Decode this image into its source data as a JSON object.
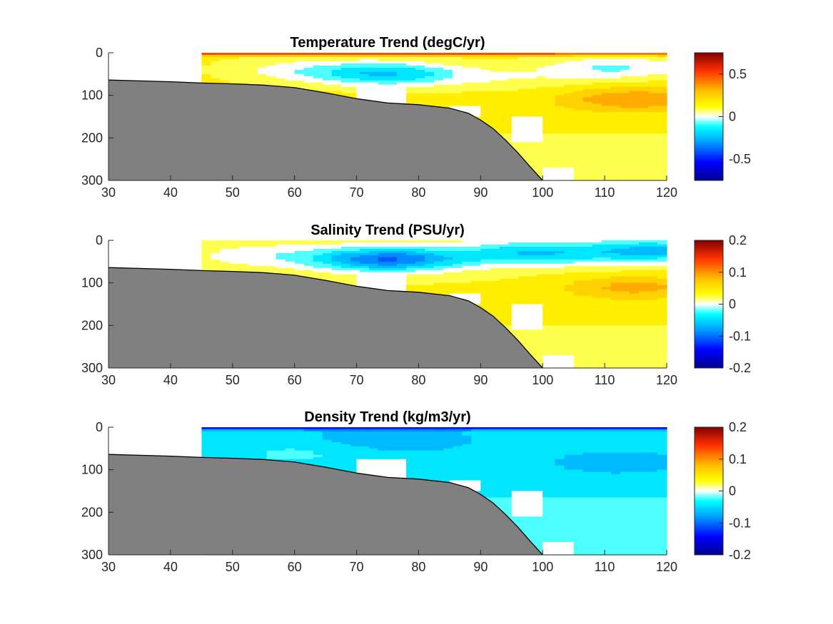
{
  "chart_data": [
    {
      "type": "heatmap",
      "title": "Temperature Trend (degC/yr)",
      "xlabel": "",
      "ylabel": "",
      "xlim": [
        30,
        120
      ],
      "xticks": [
        30,
        40,
        50,
        60,
        70,
        80,
        90,
        100,
        110,
        120
      ],
      "ylim": [
        300,
        0
      ],
      "yticks": [
        0,
        100,
        200,
        300
      ],
      "y_reversed": true,
      "clim": [
        -0.75,
        0.75
      ],
      "colorbar_ticks": [
        0.5,
        0,
        -0.5
      ],
      "data_x_start": 45,
      "field": {
        "surface": 0.6,
        "near_surface": 0.15,
        "mid_depth": 0.15,
        "deep": 0.06,
        "anomalies": [
          {
            "x": 75,
            "depth": 50,
            "value": -0.35
          },
          {
            "x": 112,
            "depth": 35,
            "value": -0.2
          },
          {
            "x": 60,
            "depth": 40,
            "value": -0.12
          },
          {
            "x": 95,
            "depth": 60,
            "value": -0.08
          },
          {
            "x": 115,
            "depth": 110,
            "value": 0.22
          }
        ]
      }
    },
    {
      "type": "heatmap",
      "title": "Salinity Trend (PSU/yr)",
      "xlabel": "",
      "ylabel": "",
      "xlim": [
        30,
        120
      ],
      "xticks": [
        30,
        40,
        50,
        60,
        70,
        80,
        90,
        100,
        110,
        120
      ],
      "ylim": [
        300,
        0
      ],
      "yticks": [
        0,
        100,
        200,
        300
      ],
      "y_reversed": true,
      "clim": [
        -0.2,
        0.2
      ],
      "colorbar_ticks": [
        0.2,
        0.1,
        0,
        -0.1,
        -0.2
      ],
      "data_x_start": 45,
      "field": {
        "surface": 0.03,
        "near_surface": 0.03,
        "mid_depth": 0.04,
        "deep": 0.02,
        "anomalies": [
          {
            "x": 75,
            "depth": 45,
            "value": -0.13
          },
          {
            "x": 98,
            "depth": 30,
            "value": -0.08
          },
          {
            "x": 118,
            "depth": 25,
            "value": -0.09
          },
          {
            "x": 55,
            "depth": 35,
            "value": -0.03
          },
          {
            "x": 115,
            "depth": 110,
            "value": 0.05
          }
        ]
      }
    },
    {
      "type": "heatmap",
      "title": "Density Trend (kg/m3/yr)",
      "xlabel": "",
      "ylabel": "",
      "xlim": [
        30,
        120
      ],
      "xticks": [
        30,
        40,
        50,
        60,
        70,
        80,
        90,
        100,
        110,
        120
      ],
      "ylim": [
        300,
        0
      ],
      "yticks": [
        0,
        100,
        200,
        300
      ],
      "y_reversed": true,
      "clim": [
        -0.2,
        0.2
      ],
      "colorbar_ticks": [
        0.2,
        0.1,
        0,
        -0.1,
        -0.2
      ],
      "data_x_start": 45,
      "field": {
        "surface": -0.15,
        "near_surface": -0.05,
        "mid_depth": -0.035,
        "deep": -0.02,
        "anomalies": [
          {
            "x": 75,
            "depth": 30,
            "value": -0.02
          },
          {
            "x": 60,
            "depth": 60,
            "value": 0.02
          },
          {
            "x": 112,
            "depth": 90,
            "value": -0.02
          }
        ]
      }
    }
  ],
  "bathymetry": {
    "color": "#808080",
    "x": [
      30,
      35,
      40,
      45,
      50,
      55,
      60,
      65,
      70,
      75,
      80,
      85,
      88,
      90,
      92,
      94,
      96,
      98,
      100
    ],
    "depth": [
      64,
      66,
      68,
      71,
      73,
      76,
      82,
      94,
      108,
      118,
      122,
      130,
      142,
      158,
      178,
      205,
      235,
      268,
      300
    ]
  },
  "masks": [
    [
      [
        30,
        0
      ],
      [
        45,
        0
      ],
      [
        45,
        60
      ],
      [
        30,
        60
      ]
    ],
    [
      [
        70,
        75
      ],
      [
        78,
        75
      ],
      [
        78,
        120
      ],
      [
        70,
        120
      ]
    ],
    [
      [
        85,
        125
      ],
      [
        90,
        125
      ],
      [
        90,
        150
      ],
      [
        85,
        150
      ]
    ],
    [
      [
        95,
        150
      ],
      [
        100,
        150
      ],
      [
        100,
        210
      ],
      [
        95,
        210
      ]
    ],
    [
      [
        100,
        270
      ],
      [
        105,
        270
      ],
      [
        105,
        300
      ],
      [
        100,
        300
      ]
    ]
  ],
  "colormap": "jet-white-center"
}
